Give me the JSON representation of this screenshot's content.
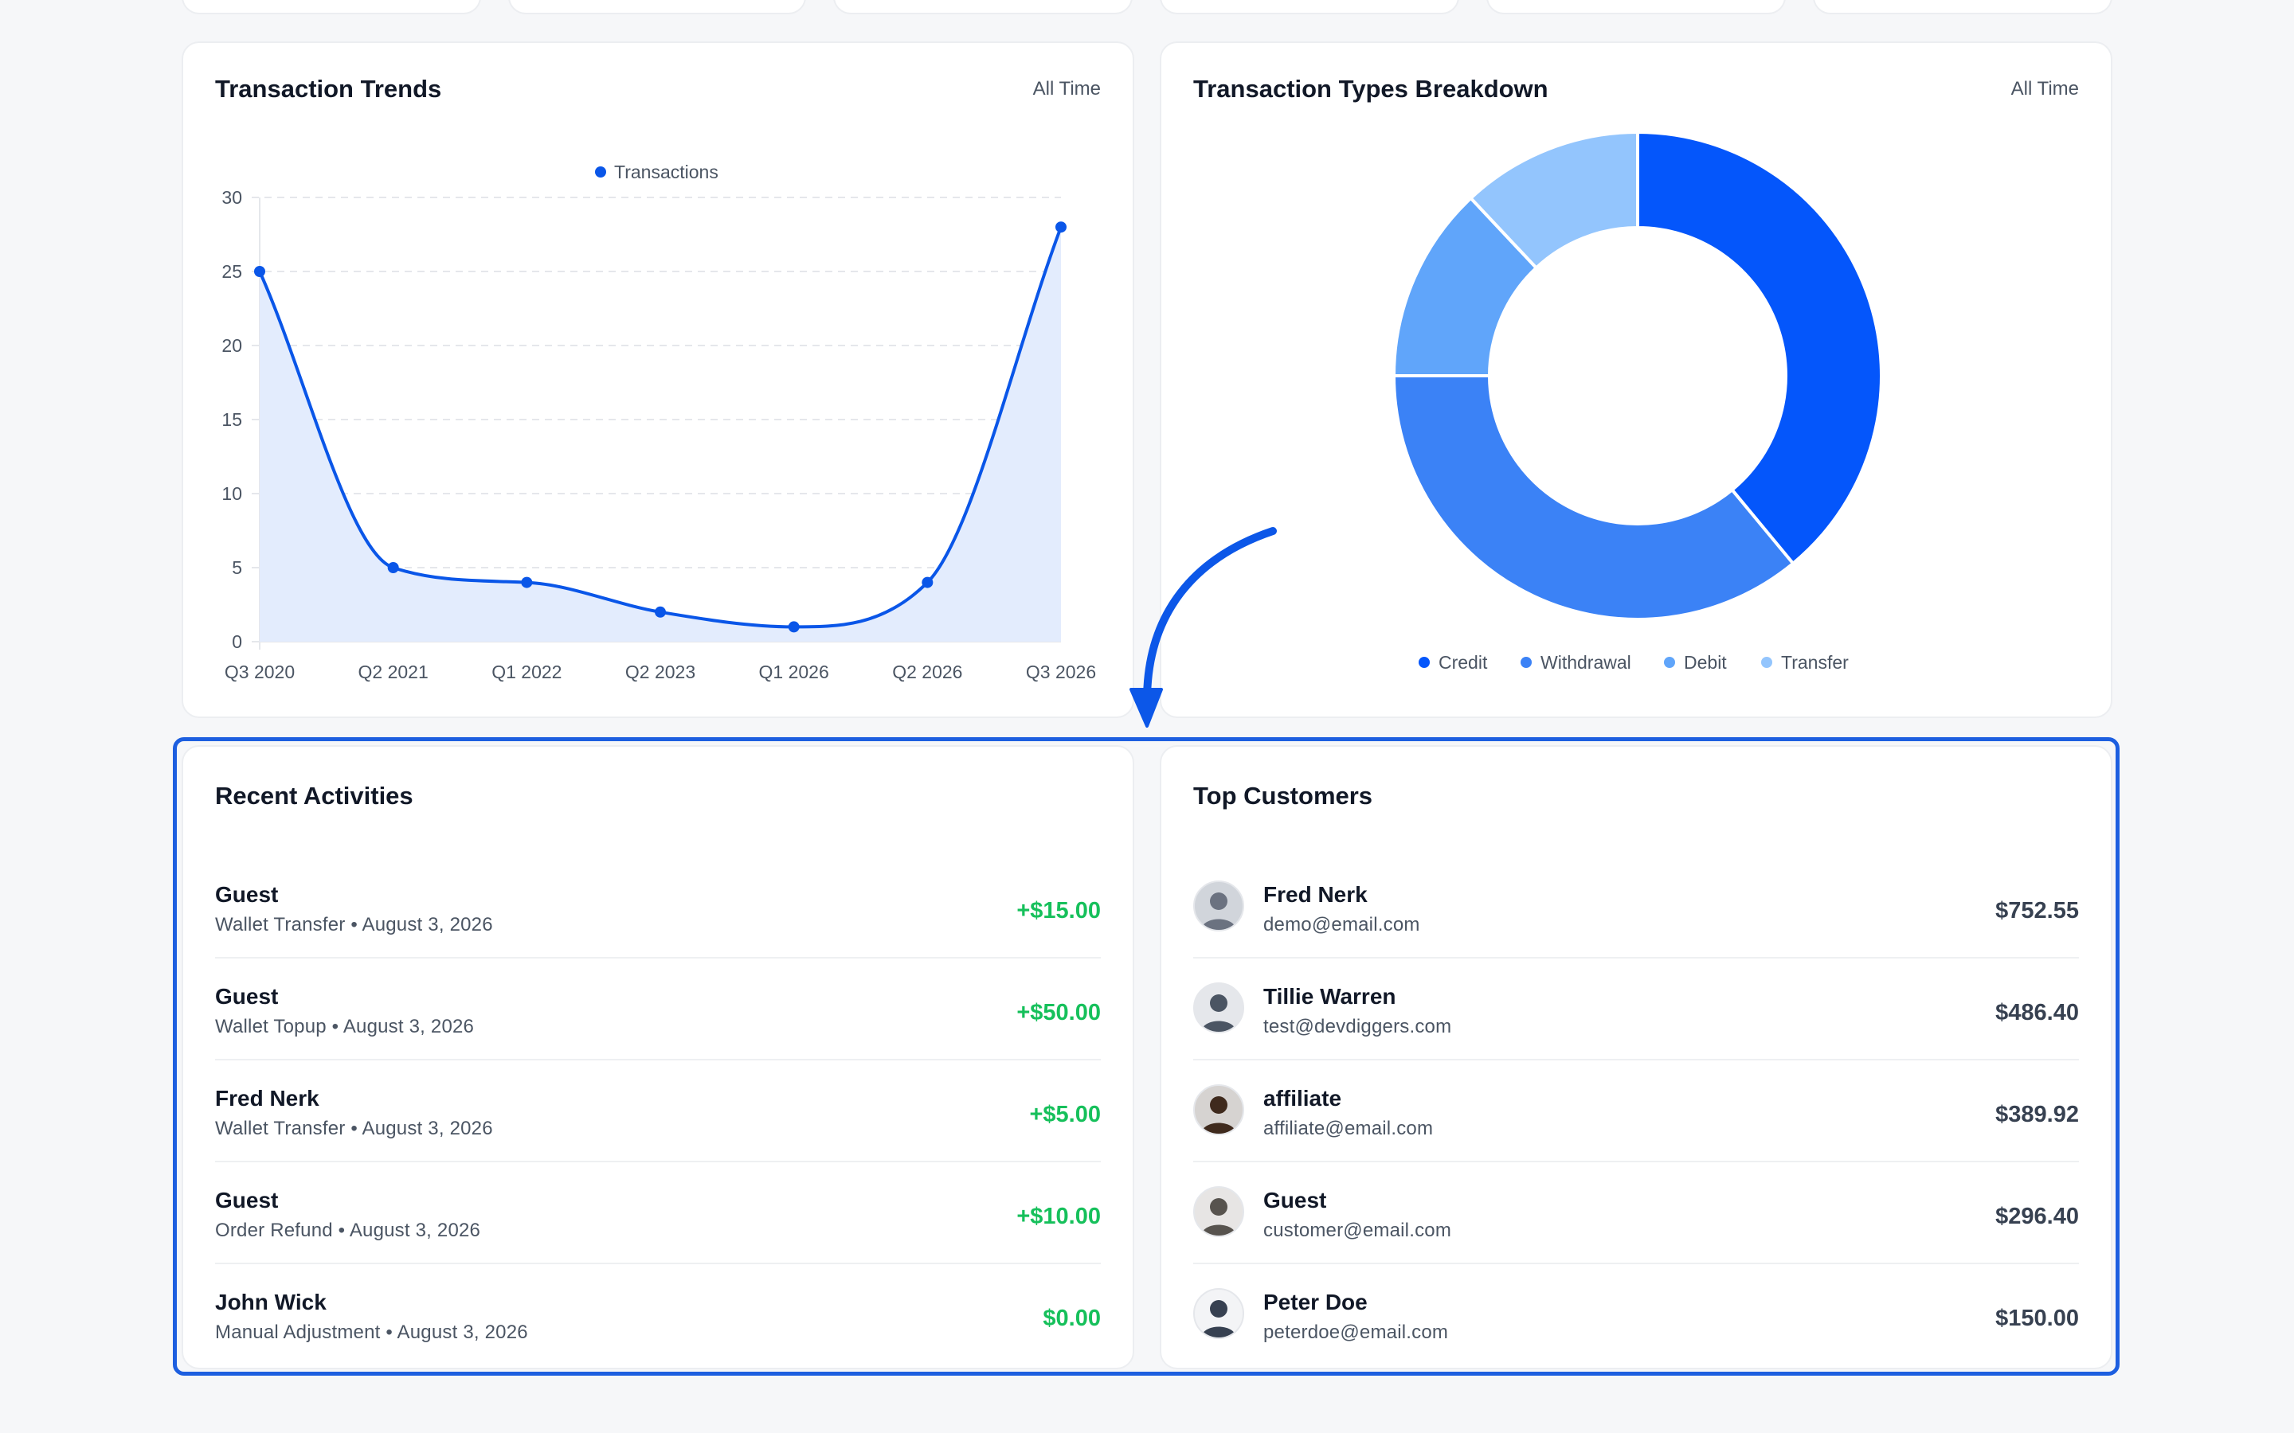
{
  "trends": {
    "title": "Transaction Trends",
    "period": "All Time",
    "chart_data": {
      "type": "line",
      "title": "",
      "xlabel": "",
      "ylabel": "",
      "legend": "top-center",
      "grid": true,
      "series": [
        {
          "name": "Transactions",
          "x": [
            "Q3 2020",
            "Q2 2021",
            "Q1 2022",
            "Q2 2023",
            "Q1 2026",
            "Q2 2026",
            "Q3 2026"
          ],
          "values": [
            25,
            5,
            4,
            2,
            1,
            4,
            28
          ]
        }
      ],
      "y_ticks": [
        0,
        5,
        10,
        15,
        20,
        25,
        30
      ],
      "ylim": [
        0,
        30
      ],
      "colors": {
        "line": "#0a56e8",
        "fill": "#e3ecfd"
      }
    }
  },
  "breakdown": {
    "title": "Transaction Types Breakdown",
    "period": "All Time",
    "chart_data": {
      "type": "pie",
      "style": "doughnut",
      "legend": "bottom",
      "labels": [
        "Credit",
        "Withdrawal",
        "Debit",
        "Transfer"
      ],
      "values": [
        39,
        36,
        13,
        12
      ],
      "colors": [
        "#0456fb",
        "#3b82f6",
        "#60a5fa",
        "#93c5fd"
      ]
    }
  },
  "recent_activities": {
    "title": "Recent Activities",
    "items": [
      {
        "name": "Guest",
        "subtitle": "Wallet Transfer • August 3, 2026",
        "amount": "+$15.00"
      },
      {
        "name": "Guest",
        "subtitle": "Wallet Topup • August 3, 2026",
        "amount": "+$50.00"
      },
      {
        "name": "Fred Nerk",
        "subtitle": "Wallet Transfer • August 3, 2026",
        "amount": "+$5.00"
      },
      {
        "name": "Guest",
        "subtitle": "Order Refund • August 3, 2026",
        "amount": "+$10.00"
      },
      {
        "name": "John Wick",
        "subtitle": "Manual Adjustment • August 3, 2026",
        "amount": "$0.00"
      }
    ]
  },
  "top_customers": {
    "title": "Top Customers",
    "items": [
      {
        "name": "Fred Nerk",
        "email": "demo@email.com",
        "amount": "$752.55"
      },
      {
        "name": "Tillie Warren",
        "email": "test@devdiggers.com",
        "amount": "$486.40"
      },
      {
        "name": "affiliate",
        "email": "affiliate@email.com",
        "amount": "$389.92"
      },
      {
        "name": "Guest",
        "email": "customer@email.com",
        "amount": "$296.40"
      },
      {
        "name": "Peter Doe",
        "email": "peterdoe@email.com",
        "amount": "$150.00"
      }
    ]
  },
  "colors": {
    "accent": "#1d5fe0",
    "positive_amount": "#16c05b",
    "neutral_amount": "#374151"
  }
}
